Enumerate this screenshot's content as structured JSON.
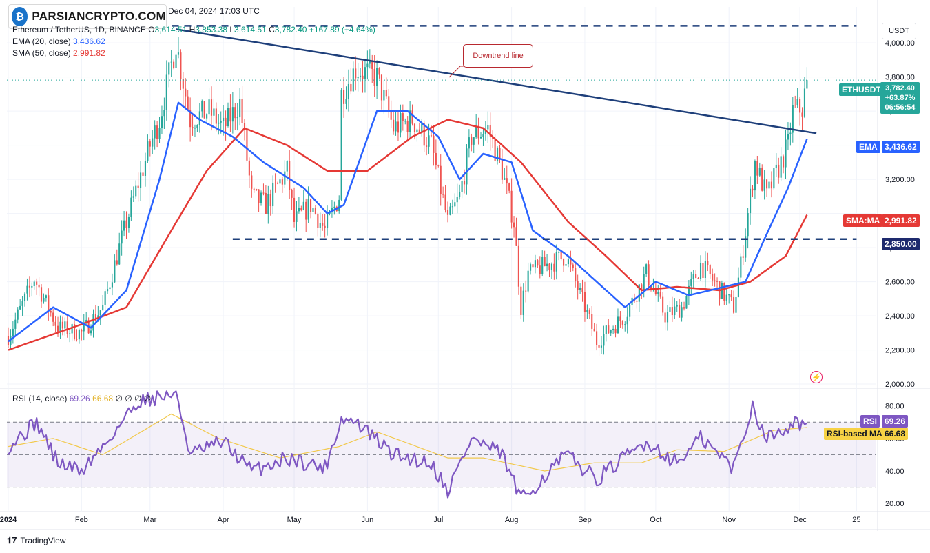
{
  "watermark": {
    "text": "PARSIANCRYPTO.COM"
  },
  "header": {
    "timestamp": "Dec 04, 2024 17:03 UTC",
    "symbol_line": "Ethereum / TetherUS, 1D, BINANCE",
    "ohlc": {
      "o_label": "O",
      "o": "3,614.51",
      "h_label": "H",
      "h": "3,853.38",
      "l_label": "L",
      "l": "3,614.51",
      "c_label": "C",
      "c": "3,782.40",
      "change": "+167.89 (+4.64%)"
    },
    "ema_label": "EMA (20, close)",
    "ema_value": "3,436.62",
    "sma_label": "SMA (50, close)",
    "sma_value": "2,991.82"
  },
  "rsi_header": {
    "label": "RSI (14, close)",
    "rsi_value": "69.26",
    "ma_value": "66.68",
    "extras": [
      "∅",
      "∅",
      "∅",
      "∅"
    ]
  },
  "price_scale": {
    "unit_button": "USDT"
  },
  "annotation": {
    "text": "Downtrend line"
  },
  "tags": {
    "symbol": "ETHUSDT",
    "last_price": "3,782.40",
    "change_pct": "+63.87%",
    "countdown": "06:56:54",
    "ema_label": "EMA",
    "ema_value": "3,436.62",
    "sma_label": "SMA:MA",
    "sma_value": "2,991.82",
    "support_value": "2,850.00",
    "rsi_label": "RSI",
    "rsi_value": "69.26",
    "rsi_ma_label": "RSI-based MA",
    "rsi_ma_value": "66.68"
  },
  "footer": {
    "brand": "TradingView"
  },
  "colors": {
    "up": "#26a69a",
    "down": "#ef5350",
    "ema": "#2962ff",
    "sma": "#e53935",
    "trendline": "#1e3f7a",
    "rsi": "#7e57c2",
    "rsi_ma": "#f2c94c",
    "price_tag": "#26a69a"
  },
  "chart_data": {
    "type": "candlestick",
    "symbol": "ETHUSDT",
    "timeframe": "1D",
    "exchange": "BINANCE",
    "price_axis": {
      "ticks": [
        2000,
        2200,
        2400,
        2600,
        2800,
        3000,
        3200,
        3400,
        3600,
        3800,
        4000
      ],
      "tick_labels": [
        "2,000.00",
        "2,200.00",
        "2,400.00",
        "2,600.00",
        "2,800.00",
        "",
        "3,200.00",
        "",
        "3,600.00",
        "3,800.00",
        "4,000.00"
      ],
      "ylim": [
        1980,
        4130
      ]
    },
    "time_axis": {
      "labels": [
        "2024",
        "Feb",
        "Mar",
        "Apr",
        "May",
        "Jun",
        "Jul",
        "Aug",
        "Sep",
        "Oct",
        "Nov",
        "Dec",
        "25"
      ],
      "dates": [
        "2024-01-01",
        "2024-02-01",
        "2024-03-01",
        "2024-04-01",
        "2024-05-01",
        "2024-06-01",
        "2024-07-01",
        "2024-08-01",
        "2024-09-01",
        "2024-10-01",
        "2024-11-01",
        "2024-12-01",
        "2024-12-25"
      ]
    },
    "close_anchors": [
      [
        "2024-01-01",
        2280
      ],
      [
        "2024-01-12",
        2620
      ],
      [
        "2024-01-22",
        2330
      ],
      [
        "2024-02-01",
        2300
      ],
      [
        "2024-02-10",
        2450
      ],
      [
        "2024-02-20",
        2950
      ],
      [
        "2024-03-01",
        3400
      ],
      [
        "2024-03-05",
        3550
      ],
      [
        "2024-03-12",
        4000
      ],
      [
        "2024-03-18",
        3550
      ],
      [
        "2024-03-26",
        3600
      ],
      [
        "2024-04-01",
        3500
      ],
      [
        "2024-04-08",
        3650
      ],
      [
        "2024-04-13",
        3100
      ],
      [
        "2024-04-19",
        3050
      ],
      [
        "2024-04-28",
        3250
      ],
      [
        "2024-05-01",
        2950
      ],
      [
        "2024-05-08",
        3050
      ],
      [
        "2024-05-14",
        2900
      ],
      [
        "2024-05-20",
        3100
      ],
      [
        "2024-05-21",
        3700
      ],
      [
        "2024-05-27",
        3850
      ],
      [
        "2024-06-05",
        3800
      ],
      [
        "2024-06-12",
        3500
      ],
      [
        "2024-06-20",
        3550
      ],
      [
        "2024-06-28",
        3400
      ],
      [
        "2024-07-05",
        2950
      ],
      [
        "2024-07-10",
        3100
      ],
      [
        "2024-07-15",
        3450
      ],
      [
        "2024-07-22",
        3500
      ],
      [
        "2024-07-28",
        3250
      ],
      [
        "2024-08-02",
        2950
      ],
      [
        "2024-08-05",
        2450
      ],
      [
        "2024-08-08",
        2650
      ],
      [
        "2024-08-24",
        2750
      ],
      [
        "2024-09-01",
        2450
      ],
      [
        "2024-09-06",
        2250
      ],
      [
        "2024-09-18",
        2400
      ],
      [
        "2024-09-27",
        2650
      ],
      [
        "2024-10-05",
        2400
      ],
      [
        "2024-10-12",
        2450
      ],
      [
        "2024-10-20",
        2700
      ],
      [
        "2024-11-03",
        2450
      ],
      [
        "2024-11-06",
        2700
      ],
      [
        "2024-11-11",
        3200
      ],
      [
        "2024-11-12",
        3300
      ],
      [
        "2024-11-17",
        3100
      ],
      [
        "2024-11-26",
        3400
      ],
      [
        "2024-11-28",
        3600
      ],
      [
        "2024-12-02",
        3615
      ],
      [
        "2024-12-04",
        3782
      ]
    ],
    "ema20_anchors": [
      [
        "2024-01-01",
        2250
      ],
      [
        "2024-01-20",
        2450
      ],
      [
        "2024-02-05",
        2330
      ],
      [
        "2024-02-20",
        2550
      ],
      [
        "2024-03-05",
        3200
      ],
      [
        "2024-03-13",
        3650
      ],
      [
        "2024-03-22",
        3550
      ],
      [
        "2024-04-05",
        3450
      ],
      [
        "2024-04-18",
        3300
      ],
      [
        "2024-05-05",
        3150
      ],
      [
        "2024-05-15",
        3000
      ],
      [
        "2024-05-22",
        3050
      ],
      [
        "2024-06-05",
        3600
      ],
      [
        "2024-06-18",
        3600
      ],
      [
        "2024-07-01",
        3450
      ],
      [
        "2024-07-10",
        3200
      ],
      [
        "2024-07-20",
        3350
      ],
      [
        "2024-08-01",
        3300
      ],
      [
        "2024-08-10",
        2900
      ],
      [
        "2024-08-25",
        2750
      ],
      [
        "2024-09-06",
        2600
      ],
      [
        "2024-09-18",
        2450
      ],
      [
        "2024-10-01",
        2600
      ],
      [
        "2024-10-15",
        2520
      ],
      [
        "2024-10-30",
        2570
      ],
      [
        "2024-11-08",
        2600
      ],
      [
        "2024-11-16",
        2850
      ],
      [
        "2024-11-26",
        3150
      ],
      [
        "2024-12-04",
        3436.62
      ]
    ],
    "sma50_anchors": [
      [
        "2024-01-01",
        2200
      ],
      [
        "2024-02-01",
        2350
      ],
      [
        "2024-02-20",
        2450
      ],
      [
        "2024-03-10",
        2900
      ],
      [
        "2024-03-25",
        3250
      ],
      [
        "2024-04-10",
        3500
      ],
      [
        "2024-04-28",
        3400
      ],
      [
        "2024-05-15",
        3250
      ],
      [
        "2024-06-01",
        3250
      ],
      [
        "2024-06-20",
        3450
      ],
      [
        "2024-07-05",
        3550
      ],
      [
        "2024-07-20",
        3500
      ],
      [
        "2024-08-05",
        3300
      ],
      [
        "2024-08-25",
        2950
      ],
      [
        "2024-09-10",
        2750
      ],
      [
        "2024-09-25",
        2550
      ],
      [
        "2024-10-10",
        2570
      ],
      [
        "2024-10-28",
        2550
      ],
      [
        "2024-11-10",
        2600
      ],
      [
        "2024-11-25",
        2750
      ],
      [
        "2024-12-04",
        2991.82
      ]
    ],
    "horizontal_levels": [
      {
        "price": 4100,
        "start": "2024-03-05",
        "end": "2024-12-25",
        "style": "dashed"
      },
      {
        "price": 2850,
        "start": "2024-04-05",
        "end": "2024-12-25",
        "style": "dashed",
        "label": "2,850.00"
      }
    ],
    "trendline": {
      "start": [
        "2024-03-12",
        4080
      ],
      "end": [
        "2024-12-08",
        3470
      ],
      "label": "Downtrend line"
    },
    "rsi": {
      "axis_ticks": [
        20,
        40,
        60,
        80
      ],
      "ylim": [
        15,
        90
      ],
      "bands": [
        30,
        50,
        70
      ],
      "rsi_anchors": [
        [
          "2024-01-01",
          55
        ],
        [
          "2024-01-13",
          70
        ],
        [
          "2024-01-22",
          45
        ],
        [
          "2024-02-01",
          40
        ],
        [
          "2024-02-10",
          55
        ],
        [
          "2024-02-25",
          83
        ],
        [
          "2024-03-12",
          88
        ],
        [
          "2024-03-18",
          50
        ],
        [
          "2024-04-01",
          58
        ],
        [
          "2024-04-13",
          40
        ],
        [
          "2024-04-28",
          48
        ],
        [
          "2024-05-14",
          42
        ],
        [
          "2024-05-21",
          72
        ],
        [
          "2024-05-27",
          70
        ],
        [
          "2024-06-12",
          50
        ],
        [
          "2024-06-28",
          45
        ],
        [
          "2024-07-05",
          28
        ],
        [
          "2024-07-15",
          60
        ],
        [
          "2024-07-28",
          50
        ],
        [
          "2024-08-05",
          22
        ],
        [
          "2024-08-24",
          50
        ],
        [
          "2024-09-06",
          35
        ],
        [
          "2024-09-27",
          58
        ],
        [
          "2024-10-10",
          45
        ],
        [
          "2024-10-20",
          60
        ],
        [
          "2024-11-03",
          42
        ],
        [
          "2024-11-11",
          80
        ],
        [
          "2024-11-17",
          60
        ],
        [
          "2024-11-28",
          70
        ],
        [
          "2024-12-04",
          69.26
        ]
      ],
      "ma_anchors": [
        [
          "2024-01-01",
          55
        ],
        [
          "2024-01-20",
          60
        ],
        [
          "2024-02-10",
          50
        ],
        [
          "2024-03-10",
          75
        ],
        [
          "2024-03-30",
          60
        ],
        [
          "2024-04-25",
          48
        ],
        [
          "2024-05-20",
          55
        ],
        [
          "2024-06-05",
          64
        ],
        [
          "2024-07-05",
          48
        ],
        [
          "2024-07-20",
          48
        ],
        [
          "2024-08-15",
          40
        ],
        [
          "2024-09-05",
          45
        ],
        [
          "2024-09-25",
          45
        ],
        [
          "2024-10-10",
          53
        ],
        [
          "2024-10-30",
          52
        ],
        [
          "2024-11-20",
          65
        ],
        [
          "2024-12-04",
          66.68
        ]
      ]
    }
  }
}
